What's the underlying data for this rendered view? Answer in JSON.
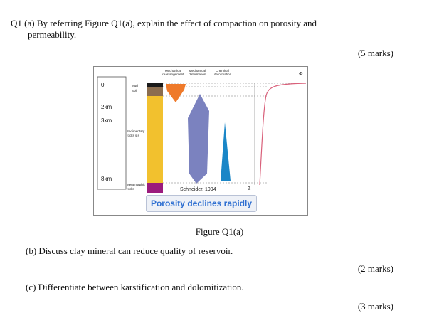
{
  "question1": {
    "line1_left": "Q1 (a) By referring Figure Q1(a), explain the effect of compaction on porosity and",
    "line2": "permeability.",
    "marks_a": "(5 marks)"
  },
  "figure": {
    "header": {
      "col1": [
        "Mechanical",
        "rearrangement"
      ],
      "col2": [
        "Mechanical",
        "deformation"
      ],
      "col3": [
        "Chemical",
        "deformation"
      ],
      "phi": "Φ"
    },
    "depth_labels": [
      "0",
      "2km",
      "3km",
      "8km"
    ],
    "layer_labels": {
      "mud": "Mud",
      "soil": "Soil",
      "sedimentary": [
        "Sedimentary",
        "rocks s.s"
      ],
      "metamorphic": [
        "Metamorphic",
        "rocks"
      ]
    },
    "citation": "Schneider, 1994",
    "z_label": "Z",
    "callout": "Porosity declines rapidly",
    "colors": {
      "mud": "#1a1a1a",
      "soil": "#8b6d4f",
      "sedimentary": "#f2c12e",
      "metamorphic": "#9b1b7d",
      "rearrangement": "#ef7a2a",
      "deformation": "#7b82bf",
      "chemical": "#1a86c7",
      "curve": "#d9607a",
      "callout_text": "#2e6fd1"
    }
  },
  "caption": "Figure Q1(a)",
  "question_b": {
    "text": "(b) Discuss clay mineral can reduce quality of reservoir.",
    "marks": "(2 marks)"
  },
  "question_c": {
    "text": "(c) Differentiate between karstification and dolomitization.",
    "marks": "(3 marks)"
  }
}
